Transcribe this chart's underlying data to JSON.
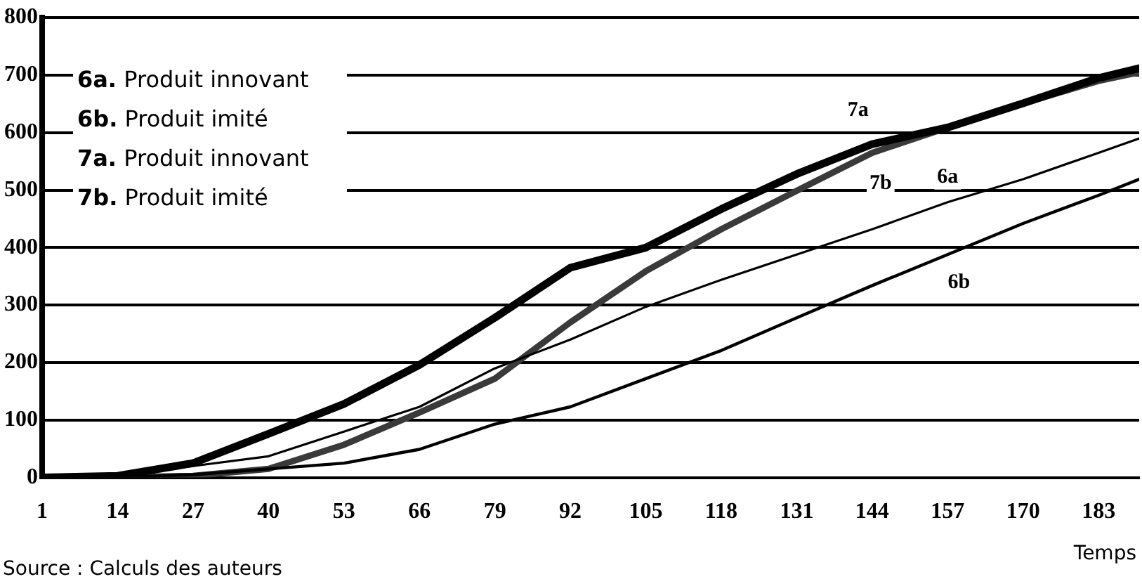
{
  "chart_data": {
    "type": "line",
    "xlabel": "Temps",
    "x": [
      1,
      14,
      27,
      40,
      53,
      66,
      79,
      92,
      105,
      118,
      131,
      144,
      157,
      170,
      183,
      190
    ],
    "series": [
      {
        "name": "6a",
        "color": "#000000",
        "values": [
          0,
          3,
          20,
          37,
          80,
          123,
          190,
          240,
          297,
          344,
          388,
          432,
          479,
          519,
          565,
          590
        ]
      },
      {
        "name": "6b",
        "color": "#000000",
        "values": [
          0,
          0,
          5,
          15,
          25,
          49,
          93,
          123,
          172,
          221,
          278,
          334,
          388,
          442,
          491,
          519
        ]
      },
      {
        "name": "7a",
        "color": "#000000",
        "values": [
          0,
          3,
          25,
          76,
          128,
          196,
          278,
          365,
          400,
          467,
          528,
          580,
          609,
          651,
          695,
          712
        ]
      },
      {
        "name": "7b",
        "color": "#3a3a3a",
        "values": [
          0,
          0,
          3,
          15,
          57,
          113,
          172,
          270,
          359,
          432,
          499,
          565,
          609,
          651,
          690,
          705
        ]
      }
    ],
    "xlim": [
      1,
      190
    ],
    "xticks": [
      1,
      14,
      27,
      40,
      53,
      66,
      79,
      92,
      105,
      118,
      131,
      144,
      157,
      170,
      183
    ],
    "ylim": [
      0,
      800
    ],
    "yticks": [
      0,
      100,
      200,
      300,
      400,
      500,
      600,
      700,
      800
    ],
    "grid": "y",
    "legend": false,
    "marker": "none",
    "line_style": "solid",
    "annotations": [
      "6a. Produit innovant",
      "6b. Produit imité",
      "7a. Produit innovant",
      "7b. Produit imité",
      "Source : Calculs des auteurs"
    ]
  }
}
